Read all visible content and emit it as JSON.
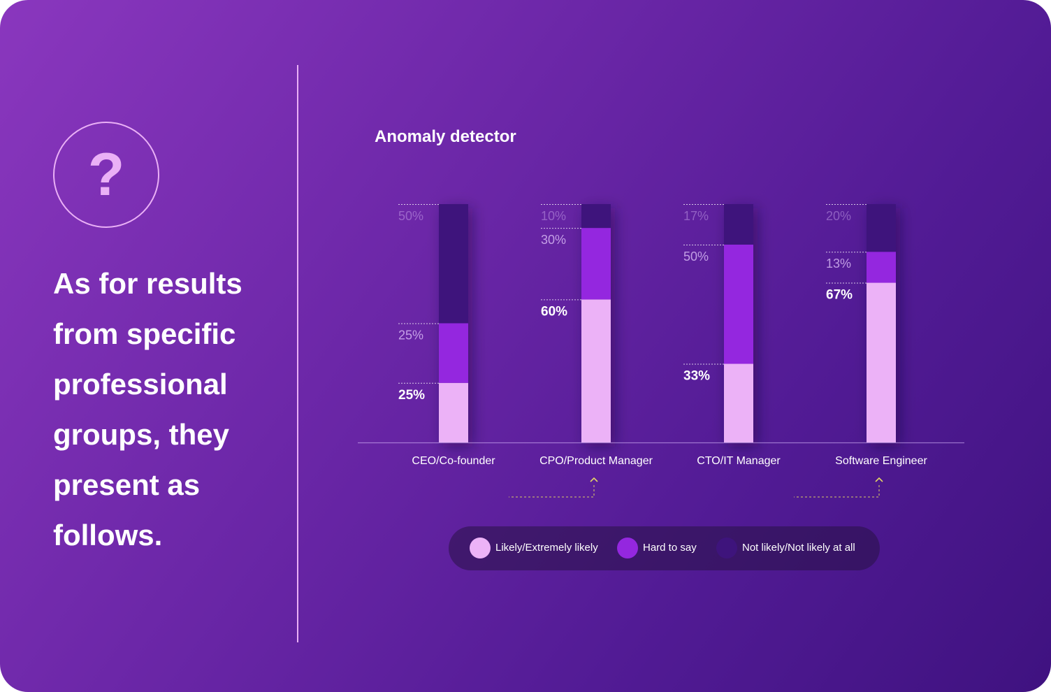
{
  "intro": {
    "icon": "question-mark-icon",
    "icon_glyph": "?",
    "lines": [
      "As for results",
      "from specific",
      "professional",
      "groups, they",
      "present as",
      "follows."
    ]
  },
  "chart_data": {
    "type": "bar",
    "stacked": true,
    "title": "Anomaly detector",
    "xlabel": "",
    "ylabel": "",
    "ylim": [
      0,
      100
    ],
    "grid": false,
    "legend_position": "bottom",
    "categories": [
      "CEO/Co-founder",
      "CPO/Product Manager",
      "CTO/IT Manager",
      "Software Engineer"
    ],
    "series": [
      {
        "name": "Likely/Extremely likely",
        "color": "#ecb2f7",
        "values": [
          25,
          60,
          33,
          67
        ],
        "labels": [
          "25%",
          "60%",
          "33%",
          "67%"
        ]
      },
      {
        "name": "Hard to say",
        "color": "#9427df",
        "values": [
          25,
          30,
          50,
          13
        ],
        "labels": [
          "25%",
          "30%",
          "50%",
          "13%"
        ]
      },
      {
        "name": "Not likely/Not likely at all",
        "color": "#3e147c",
        "values": [
          50,
          10,
          17,
          20
        ],
        "labels": [
          "50%",
          "10%",
          "17%",
          "20%"
        ]
      }
    ],
    "highlighted_categories": [
      "CPO/Product Manager",
      "Software Engineer"
    ],
    "highlight_marker": "chevron-up-icon",
    "highlight_color": "#e2d466"
  }
}
